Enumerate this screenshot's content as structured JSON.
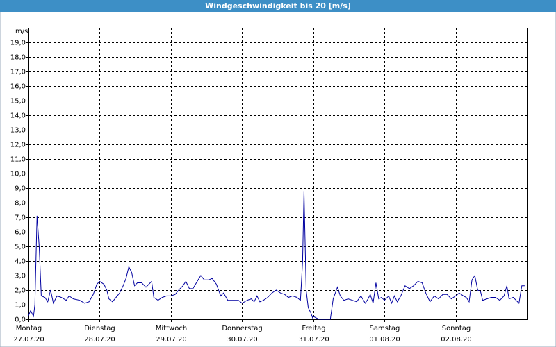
{
  "chart_data": {
    "type": "line",
    "title": "Windgeschwindigkeit bis 20 [m/s]",
    "y_label": "m/s",
    "xlim": [
      0,
      7
    ],
    "ylim": [
      0,
      20
    ],
    "grid": true,
    "xticks": [
      {
        "value": 0,
        "label": "Montag"
      },
      {
        "value": 1,
        "label": "Dienstag"
      },
      {
        "value": 2,
        "label": "Mittwoch"
      },
      {
        "value": 3,
        "label": "Donnerstag"
      },
      {
        "value": 4,
        "label": "Freitag"
      },
      {
        "value": 5,
        "label": "Samstag"
      },
      {
        "value": 6,
        "label": "Sonntag"
      }
    ],
    "xtick_dates": [
      "27.07.20",
      "28.07.20",
      "29.07.20",
      "30.07.20",
      "31.07.20",
      "01.08.20",
      "02.08.20"
    ],
    "yticks": [
      {
        "value": 0,
        "label": "0,0"
      },
      {
        "value": 1,
        "label": "1,0"
      },
      {
        "value": 2,
        "label": "2,0"
      },
      {
        "value": 3,
        "label": "3,0"
      },
      {
        "value": 4,
        "label": "4,0"
      },
      {
        "value": 5,
        "label": "5,0"
      },
      {
        "value": 6,
        "label": "6,0"
      },
      {
        "value": 7,
        "label": "7,0"
      },
      {
        "value": 8,
        "label": "8,0"
      },
      {
        "value": 9,
        "label": "9,0"
      },
      {
        "value": 10,
        "label": "10,0"
      },
      {
        "value": 11,
        "label": "11,0"
      },
      {
        "value": 12,
        "label": "12,0"
      },
      {
        "value": 13,
        "label": "13,0"
      },
      {
        "value": 14,
        "label": "14,0"
      },
      {
        "value": 15,
        "label": "15,0"
      },
      {
        "value": 16,
        "label": "16,0"
      },
      {
        "value": 17,
        "label": "17,0"
      },
      {
        "value": 18,
        "label": "18,0"
      },
      {
        "value": 19,
        "label": "19,0"
      }
    ],
    "series": [
      {
        "color": "#0000a0",
        "x": [
          0,
          0.03,
          0.07,
          0.09,
          0.12,
          0.15,
          0.18,
          0.23,
          0.27,
          0.31,
          0.35,
          0.4,
          0.46,
          0.53,
          0.57,
          0.63,
          0.72,
          0.79,
          0.85,
          0.91,
          0.96,
          1.0,
          1.06,
          1.1,
          1.13,
          1.18,
          1.23,
          1.28,
          1.33,
          1.37,
          1.41,
          1.45,
          1.49,
          1.53,
          1.59,
          1.65,
          1.69,
          1.73,
          1.76,
          1.82,
          1.88,
          1.94,
          2.0,
          2.06,
          2.11,
          2.17,
          2.21,
          2.26,
          2.31,
          2.37,
          2.42,
          2.47,
          2.53,
          2.58,
          2.64,
          2.7,
          2.74,
          2.8,
          2.88,
          2.95,
          3.0,
          3.07,
          3.13,
          3.17,
          3.21,
          3.25,
          3.3,
          3.36,
          3.42,
          3.48,
          3.54,
          3.6,
          3.65,
          3.71,
          3.77,
          3.82,
          3.85,
          3.87,
          3.9,
          3.93,
          3.97,
          3.99,
          4.0,
          4.04,
          4.08,
          4.18,
          4.24,
          4.28,
          4.34,
          4.38,
          4.43,
          4.49,
          4.55,
          4.61,
          4.67,
          4.73,
          4.77,
          4.8,
          4.84,
          4.88,
          4.92,
          4.96,
          5.0,
          5.06,
          5.1,
          5.14,
          5.18,
          5.23,
          5.29,
          5.35,
          5.41,
          5.47,
          5.53,
          5.58,
          5.64,
          5.7,
          5.76,
          5.82,
          5.88,
          5.94,
          6.0,
          6.05,
          6.11,
          6.15,
          6.19,
          6.23,
          6.27,
          6.31,
          6.35,
          6.38,
          6.44,
          6.5,
          6.56,
          6.62,
          6.68,
          6.72,
          6.75,
          6.81,
          6.85,
          6.89,
          6.93,
          6.97
        ],
        "values": [
          0.25,
          0.6,
          0.2,
          1.0,
          7.1,
          5.0,
          1.6,
          1.5,
          1.2,
          2.0,
          1.1,
          1.6,
          1.5,
          1.3,
          1.6,
          1.4,
          1.3,
          1.1,
          1.2,
          1.7,
          2.4,
          2.6,
          2.4,
          2.0,
          1.4,
          1.2,
          1.5,
          1.8,
          2.3,
          2.8,
          3.6,
          3.2,
          2.3,
          2.5,
          2.5,
          2.2,
          2.4,
          2.6,
          1.5,
          1.3,
          1.5,
          1.6,
          1.6,
          1.7,
          2.0,
          2.3,
          2.6,
          2.1,
          2.1,
          2.6,
          3.0,
          2.7,
          2.7,
          2.8,
          2.4,
          1.6,
          1.8,
          1.3,
          1.3,
          1.3,
          1.1,
          1.3,
          1.4,
          1.2,
          1.6,
          1.2,
          1.3,
          1.5,
          1.8,
          2.0,
          1.8,
          1.7,
          1.5,
          1.6,
          1.5,
          1.3,
          4.0,
          8.8,
          2.0,
          0.8,
          0.4,
          0.1,
          0.2,
          0.1,
          0,
          0,
          0,
          1.4,
          2.2,
          1.6,
          1.3,
          1.4,
          1.3,
          1.2,
          1.6,
          1.1,
          1.4,
          1.7,
          1.1,
          2.5,
          1.4,
          1.5,
          1.3,
          1.6,
          1.1,
          1.6,
          1.2,
          1.6,
          2.3,
          2.1,
          2.3,
          2.6,
          2.5,
          1.8,
          1.2,
          1.6,
          1.4,
          1.7,
          1.7,
          1.4,
          1.6,
          1.8,
          1.6,
          1.5,
          1.2,
          2.7,
          3.0,
          2.0,
          1.9,
          1.3,
          1.4,
          1.5,
          1.5,
          1.3,
          1.6,
          2.3,
          1.4,
          1.5,
          1.3,
          1.1,
          2.3,
          2.3
        ]
      }
    ]
  }
}
